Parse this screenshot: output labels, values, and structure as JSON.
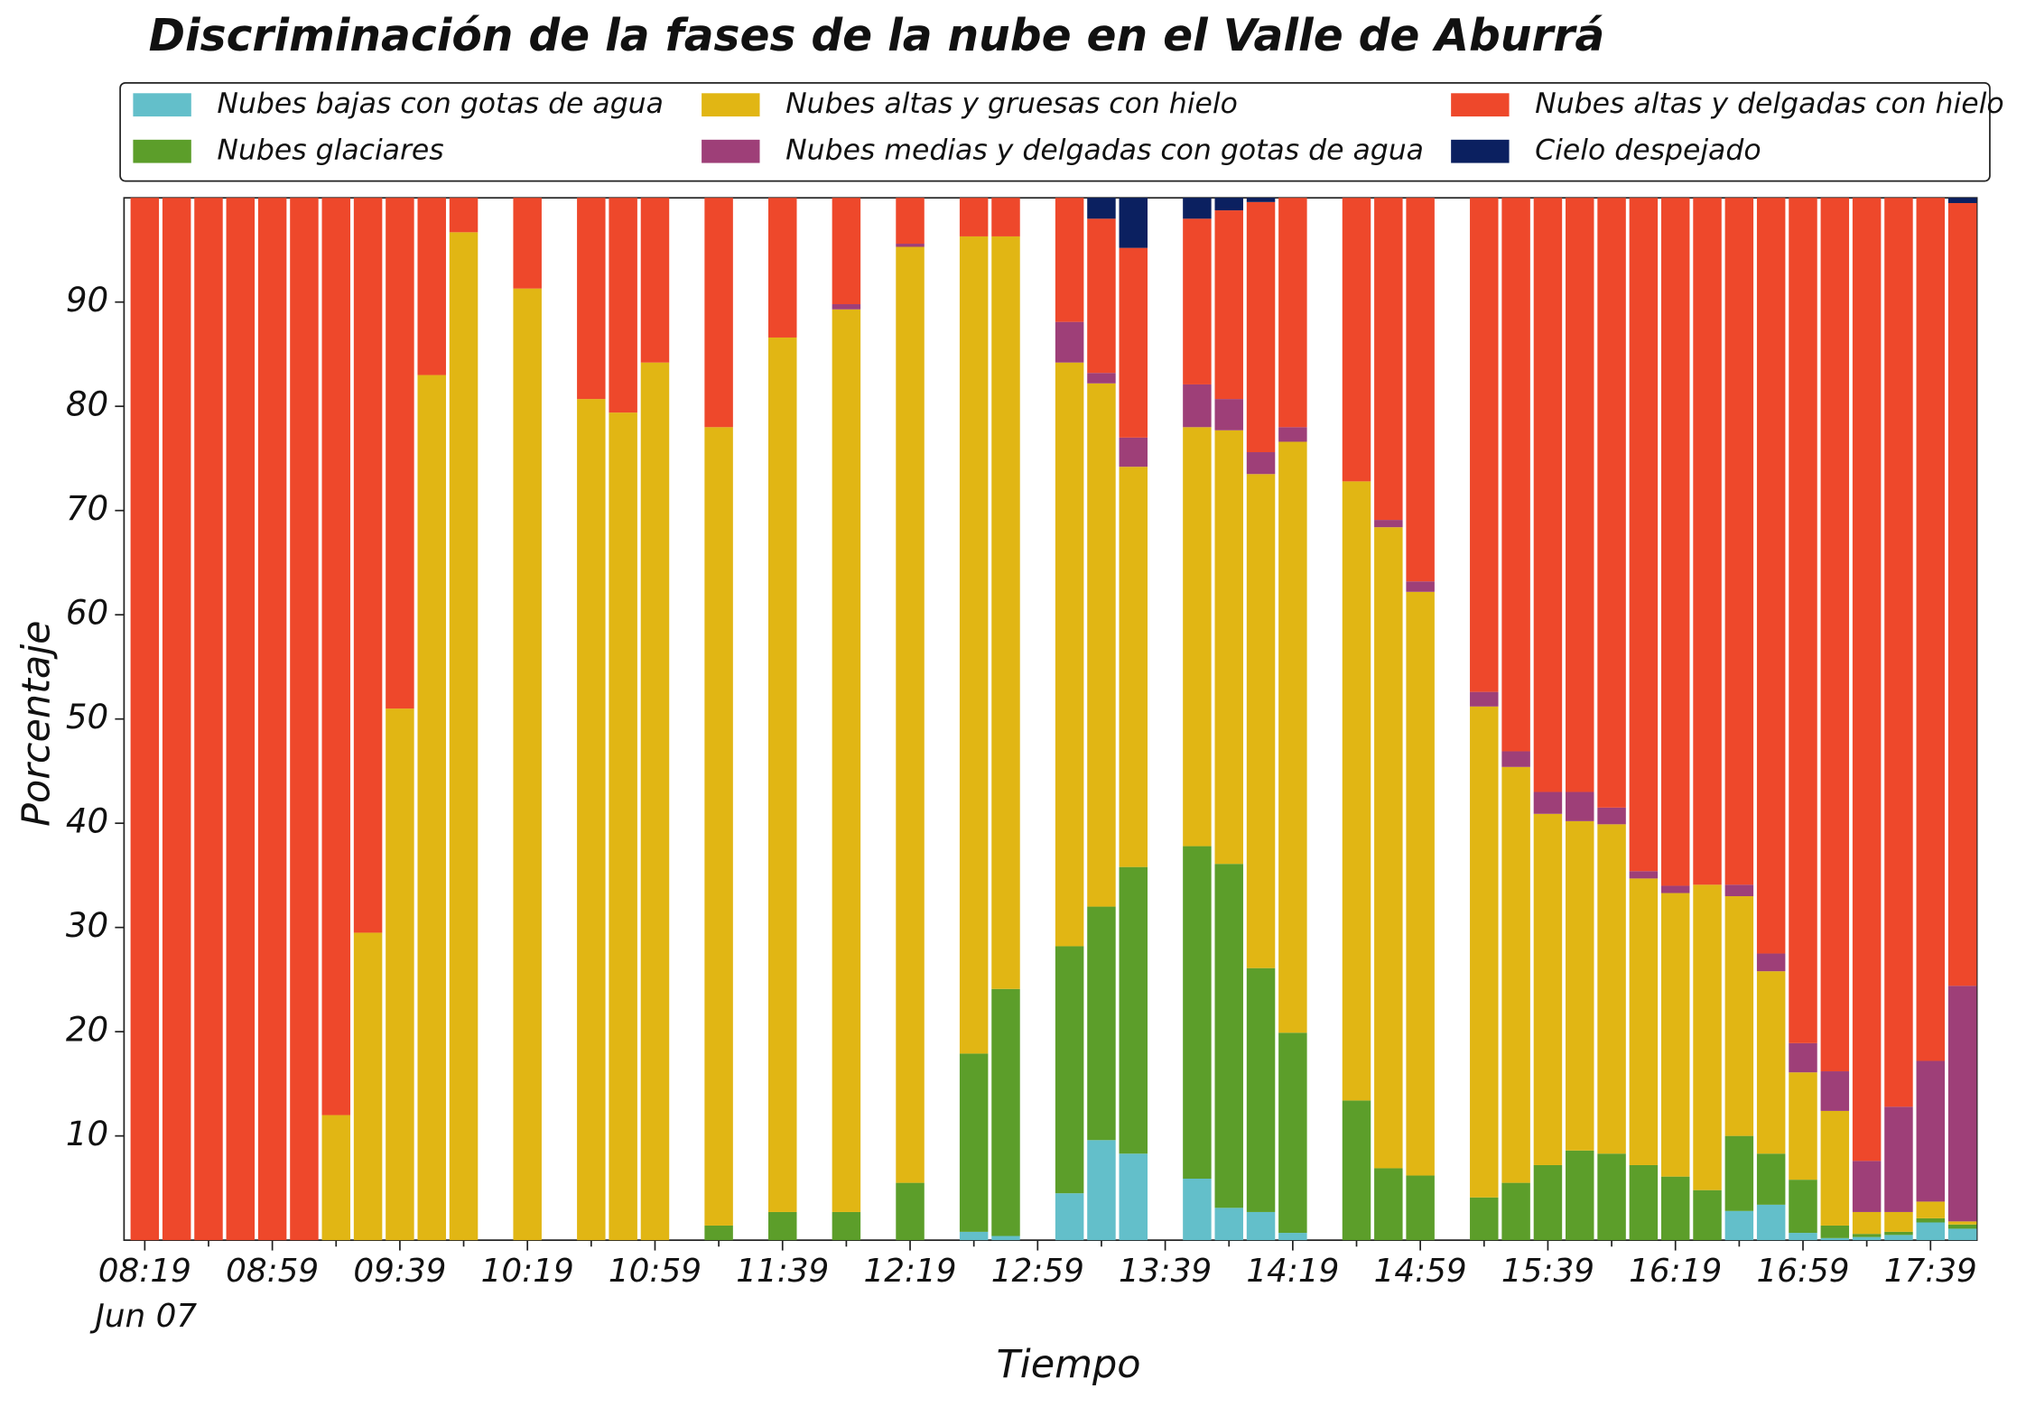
{
  "chart_data": {
    "type": "stacked_bar",
    "title": "Discriminación de la fases de la nube en el Valle de Aburrá",
    "xlabel": "Tiempo",
    "ylabel": "Porcentaje",
    "x_date_label": "Jun 07",
    "categories": [
      "08:19",
      null,
      null,
      null,
      "08:59",
      null,
      null,
      null,
      "09:39",
      null,
      null,
      null,
      "10:19",
      null,
      null,
      null,
      "10:59",
      null,
      null,
      null,
      "11:39",
      null,
      null,
      null,
      "12:19",
      null,
      null,
      null,
      "12:59",
      null,
      null,
      null,
      "13:39",
      null,
      null,
      null,
      "14:19",
      null,
      null,
      null,
      "14:59",
      null,
      null,
      null,
      "15:39",
      null,
      null,
      null,
      "16:19",
      null,
      null,
      null,
      "16:59",
      null,
      null,
      null,
      "17:39",
      null
    ],
    "ylim": [
      0,
      100
    ],
    "yticks": [
      10,
      20,
      30,
      40,
      50,
      60,
      70,
      80,
      90
    ],
    "series": [
      {
        "name": "Nubes bajas con gotas de agua",
        "color": "#63bfca",
        "values": [
          0,
          0,
          0,
          0,
          0,
          0,
          0,
          0,
          0,
          0,
          0,
          null,
          0,
          null,
          0,
          0,
          0,
          null,
          0,
          null,
          0,
          null,
          0,
          null,
          0,
          null,
          0.8,
          0.4,
          null,
          4.5,
          9.6,
          8.3,
          null,
          5.9,
          3.1,
          2.7,
          0.7,
          null,
          0,
          0,
          0,
          null,
          0,
          0,
          0,
          0,
          0,
          0,
          0,
          0,
          2.8,
          3.4,
          0.7,
          0.2,
          0.3,
          0.5,
          1.7,
          1.1
        ]
      },
      {
        "name": "Nubes glaciares",
        "color": "#5c9e2a",
        "values": [
          0,
          0,
          0,
          0,
          0,
          0,
          0,
          0,
          0,
          0,
          0,
          null,
          0,
          null,
          0,
          0,
          0,
          null,
          1.4,
          null,
          2.7,
          null,
          2.7,
          null,
          5.5,
          null,
          17.1,
          23.7,
          null,
          23.7,
          22.4,
          27.5,
          null,
          31.9,
          33,
          23.4,
          19.2,
          null,
          13.4,
          6.9,
          6.2,
          null,
          4.1,
          5.5,
          7.2,
          8.6,
          8.3,
          7.2,
          6.1,
          4.8,
          7.2,
          4.9,
          5.1,
          1.2,
          0.3,
          0.3,
          0.4,
          0.4
        ]
      },
      {
        "name": "Nubes altas y gruesas con hielo",
        "color": "#e1b614",
        "values": [
          0,
          0,
          0,
          0,
          0,
          0,
          12,
          29.5,
          51,
          83,
          96.7,
          null,
          91.3,
          null,
          80.7,
          79.4,
          84.2,
          null,
          76.6,
          null,
          83.9,
          null,
          86.6,
          null,
          89.8,
          null,
          78.4,
          72.2,
          null,
          56,
          50.2,
          38.4,
          null,
          40.2,
          41.6,
          47.4,
          56.7,
          null,
          59.4,
          61.5,
          56,
          null,
          47.1,
          39.9,
          33.7,
          31.6,
          31.6,
          27.5,
          27.2,
          29.3,
          23,
          17.5,
          10.3,
          11,
          2.1,
          1.9,
          1.6,
          0.3
        ]
      },
      {
        "name": "Nubes medias y delgadas con gotas de agua",
        "color": "#9e3f78",
        "values": [
          0,
          0,
          0,
          0,
          0,
          0,
          0,
          0,
          0,
          0,
          0,
          null,
          0,
          null,
          0,
          0,
          0,
          null,
          0,
          null,
          0,
          null,
          0.5,
          null,
          0.3,
          null,
          0,
          0,
          null,
          3.9,
          1,
          2.8,
          null,
          4.1,
          3,
          2.1,
          1.4,
          null,
          0,
          0.7,
          1,
          null,
          1.4,
          1.5,
          2.1,
          2.8,
          1.6,
          0.7,
          0.7,
          0,
          1.1,
          1.7,
          2.8,
          3.8,
          4.9,
          10.1,
          13.5,
          22.6
        ]
      },
      {
        "name": "Nubes altas y delgadas con hielo",
        "color": "#ee482b",
        "values": [
          100,
          100,
          100,
          100,
          100,
          100,
          88,
          70.5,
          49,
          17,
          3.3,
          null,
          8.7,
          null,
          19.3,
          20.6,
          15.8,
          null,
          22,
          null,
          13.4,
          null,
          10.2,
          null,
          4.4,
          null,
          3.7,
          3.7,
          null,
          11.9,
          14.8,
          18.2,
          null,
          15.9,
          18.1,
          24,
          22,
          null,
          27.2,
          30.9,
          36.8,
          null,
          47.4,
          53.1,
          57,
          57,
          58.5,
          64.6,
          66,
          65.9,
          65.9,
          72.5,
          81.1,
          83.8,
          92.4,
          87.2,
          82.8,
          75.1
        ]
      },
      {
        "name": "Cielo despejado",
        "color": "#0b2060",
        "values": [
          0,
          0,
          0,
          0,
          0,
          0,
          0,
          0,
          0,
          0,
          0,
          null,
          0,
          null,
          0,
          0,
          0,
          null,
          0,
          null,
          0,
          null,
          0,
          null,
          0,
          null,
          0,
          0,
          null,
          0,
          2,
          4.8,
          null,
          2,
          1.2,
          0.4,
          0,
          null,
          0,
          0,
          0,
          null,
          0,
          0,
          0,
          0,
          0,
          0,
          0,
          0,
          0,
          0,
          0,
          0,
          0,
          0,
          0,
          0.5
        ]
      }
    ]
  }
}
